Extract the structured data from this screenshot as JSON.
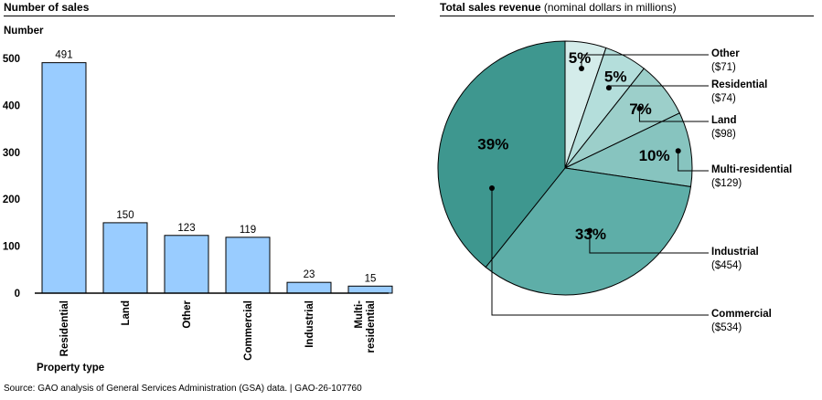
{
  "source_note": "Source: GAO analysis of General Services Administration (GSA) data.  |  GAO-26-107760",
  "chart_data": [
    {
      "type": "bar",
      "title": "Number of sales",
      "ylabel": "Number",
      "xlabel": "Property type",
      "categories": [
        "Residential",
        "Land",
        "Other",
        "Commercial",
        "Industrial",
        "Multi-residential"
      ],
      "category_lines": [
        [
          "Residential"
        ],
        [
          "Land"
        ],
        [
          "Other"
        ],
        [
          "Commercial"
        ],
        [
          "Industrial"
        ],
        [
          "Multi-",
          "residential"
        ]
      ],
      "values": [
        491,
        150,
        123,
        119,
        23,
        15
      ],
      "ylim": [
        0,
        500
      ],
      "yticks": [
        0,
        100,
        200,
        300,
        400,
        500
      ],
      "grid": false,
      "bar_color": "#99ccff"
    },
    {
      "type": "pie",
      "title": "Total sales revenue",
      "subtitle": "(nominal dollars in millions)",
      "units": "nominal dollars in millions",
      "slices": [
        {
          "name": "Other",
          "value": 71,
          "value_label": "($71)",
          "percent_label": "5%",
          "color": "#d4ecea"
        },
        {
          "name": "Residential",
          "value": 74,
          "value_label": "($74)",
          "percent_label": "5%",
          "color": "#b4dedb"
        },
        {
          "name": "Land",
          "value": 98,
          "value_label": "($98)",
          "percent_label": "7%",
          "color": "#9ccfca"
        },
        {
          "name": "Multi-residential",
          "value": 129,
          "value_label": "($129)",
          "percent_label": "10%",
          "color": "#87c4bf"
        },
        {
          "name": "Industrial",
          "value": 454,
          "value_label": "($454)",
          "percent_label": "33%",
          "color": "#5eaea8"
        },
        {
          "name": "Commercial",
          "value": 534,
          "value_label": "($534)",
          "percent_label": "39%",
          "color": "#3e978f"
        }
      ]
    }
  ]
}
